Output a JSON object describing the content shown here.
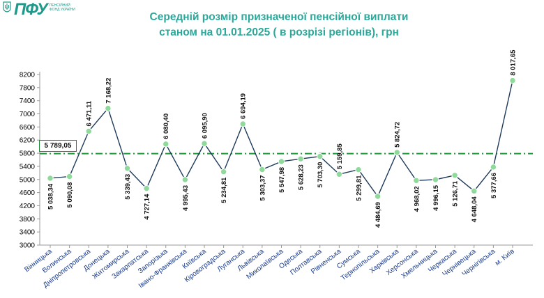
{
  "header": {
    "logo_text": "ПФУ",
    "logo_subtitle": "ПЕНСІЙНИЙ ФОНД УКРАЇНИ",
    "title_line1": "Середній розмір призначеної пенсійної виплати",
    "title_line2": "станом на 01.01.2025 ( в розрізі регіонів), грн"
  },
  "colors": {
    "title": "#2aa89a",
    "line": "#1e3a5a",
    "marker": "#8fd99b",
    "average_line": "#1f9a3a",
    "x_labels": "#1a3d8f"
  },
  "chart_data": {
    "type": "line",
    "title": "Середній розмір призначеної пенсійної виплати станом на 01.01.2025 ( в розрізі регіонів), грн",
    "categories": [
      "Вінницька",
      "Волинська",
      "Дніпропетровська",
      "Донецька",
      "Житомирська",
      "Закарпатська",
      "Запорізька",
      "Івано-Франківська",
      "Київська",
      "Кіровоградська",
      "Луганська",
      "Львівська",
      "Миколаївська",
      "Одеська",
      "Полтавська",
      "Рівненська",
      "Сумська",
      "Тернопільська",
      "Харківська",
      "Херсонська",
      "Хмельницька",
      "Черкаська",
      "Чернівецька",
      "Чернігівська",
      "м. Київ"
    ],
    "values": [
      5038.34,
      5090.08,
      6471.11,
      7168.22,
      5339.43,
      4727.14,
      6080.4,
      4995.43,
      6095.9,
      5234.81,
      6694.19,
      5303.37,
      5547.98,
      5628.23,
      5703.3,
      5159.85,
      5299.81,
      4484.69,
      5824.72,
      4968.02,
      4996.15,
      5126.71,
      4648.04,
      5377.66,
      8017.65
    ],
    "value_labels": [
      "5 038,34",
      "5 090,08",
      "6 471,11",
      "7 168,22",
      "5 339,43",
      "4 727,14",
      "6 080,40",
      "4 995,43",
      "6 095,90",
      "5 234,81",
      "6 694,19",
      "5 303,37",
      "5 547,98",
      "5 628,23",
      "5 703,30",
      "5 159,85",
      "5 299,81",
      "4 484,69",
      "5 824,72",
      "4 968,02",
      "4 996,15",
      "5 126,71",
      "4 648,04",
      "5 377,66",
      "8 017,65"
    ],
    "label_position": [
      "below",
      "below",
      "above",
      "above",
      "below",
      "below",
      "above",
      "below",
      "above",
      "below",
      "above",
      "below",
      "below",
      "below",
      "below",
      "above",
      "below",
      "below",
      "above",
      "below",
      "below",
      "below",
      "below",
      "below",
      "above"
    ],
    "average": 5789.05,
    "average_label": "5 789,05",
    "ylim": [
      3000,
      8200
    ],
    "yticks": [
      3000,
      3400,
      3800,
      4200,
      4600,
      5000,
      5400,
      5800,
      6200,
      6600,
      7000,
      7400,
      7800,
      8200
    ],
    "grid": false,
    "legend": "none"
  }
}
